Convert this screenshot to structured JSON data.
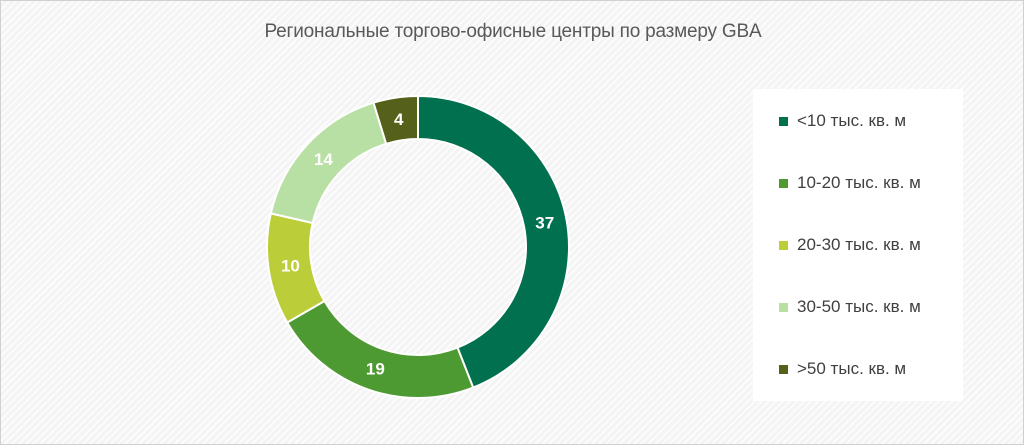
{
  "chart_data": {
    "type": "pie",
    "title": "Региональные торгово-офисные центры по размеру GBA",
    "categories": [
      "<10 тыс. кв. м",
      "10-20 тыс. кв. м",
      "20-30 тыс. кв. м",
      "30-50 тыс. кв. м",
      ">50 тыс. кв. м"
    ],
    "values": [
      37,
      19,
      10,
      14,
      4
    ],
    "colors": [
      "#00704f",
      "#4e9a32",
      "#bccd3a",
      "#b9e0a4",
      "#55611a"
    ],
    "data_labels": [
      "37",
      "19",
      "10",
      "14",
      "4"
    ],
    "legend_position": "right",
    "donut": true
  }
}
